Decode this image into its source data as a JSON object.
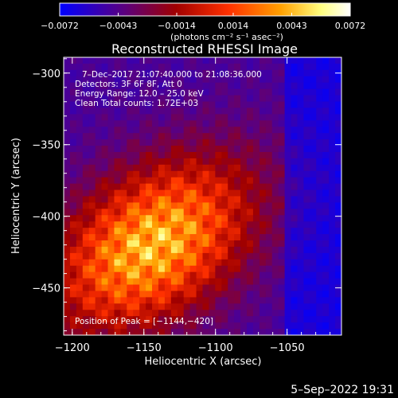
{
  "chart_data": {
    "type": "heatmap",
    "title": "Reconstructed RHESSI Image",
    "xlabel": "Heliocentric X (arcsec)",
    "ylabel": "Heliocentric Y (arcsec)",
    "xlim": [
      -1206,
      -1012
    ],
    "ylim": [
      -483,
      -289
    ],
    "x_ticks": [
      -1200,
      -1150,
      -1100,
      -1050
    ],
    "x_tick_labels": [
      "−1200",
      "−1150",
      "−1100",
      "−1050"
    ],
    "y_ticks": [
      -300,
      -350,
      -400,
      -450
    ],
    "y_tick_labels": [
      "−300",
      "−350",
      "−400",
      "−450"
    ],
    "colorbar": {
      "range": [
        -0.0072,
        0.0072
      ],
      "ticks": [
        -0.0072,
        -0.0043,
        -0.0014,
        0.0014,
        0.0043,
        0.0072
      ],
      "tick_labels": [
        "−0.0072",
        "−0.0043",
        "−0.0014",
        "0.0014",
        "0.0043",
        "0.0072"
      ],
      "unit_label": "(photons cm⁻² s⁻¹ asec⁻²)",
      "colormap": [
        "#0000ff",
        "#5a0080",
        "#a00000",
        "#ff3000",
        "#ffa000",
        "#ffff80",
        "#ffffff"
      ]
    },
    "peak": {
      "x": -1144,
      "y": -420
    },
    "annotations": {
      "time_range": "7–Dec–2017 21:07:40.000 to 21:08:36.000",
      "detectors": "Detectors: 3F 6F 8F, Att 0",
      "energy": "Energy Range: 12.0 – 25.0 keV",
      "method": "Clean    Total counts: 1.72E+03",
      "peak": "Position of Peak = [−1144,−420]"
    },
    "grid": false
  },
  "footer": {
    "date": "5–Sep–2022 19:31"
  }
}
